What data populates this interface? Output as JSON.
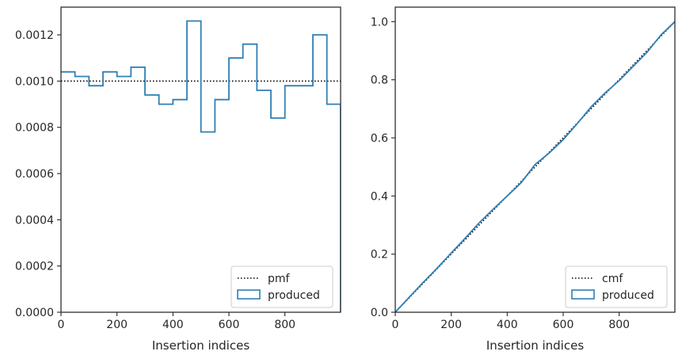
{
  "chart_data": [
    {
      "type": "histogram-step",
      "xlabel": "Insertion indices",
      "ylabel": "",
      "xlim": [
        0,
        999
      ],
      "ylim": [
        0,
        0.00132
      ],
      "x_ticks": [
        0,
        200,
        400,
        600,
        800
      ],
      "x_tick_labels": [
        "0",
        "200",
        "400",
        "600",
        "800"
      ],
      "y_ticks": [
        0,
        0.0002,
        0.0004,
        0.0006,
        0.0008,
        0.001,
        0.0012
      ],
      "y_tick_labels": [
        "0.0000",
        "0.0002",
        "0.0004",
        "0.0006",
        "0.0008",
        "0.0010",
        "0.0012"
      ],
      "legend": {
        "placement": "lower-right",
        "entries": [
          "pmf",
          "produced"
        ]
      },
      "series": [
        {
          "name": "pmf",
          "kind": "reference-line",
          "style": "dotted",
          "color": "#000000",
          "value": 0.001
        },
        {
          "name": "produced",
          "kind": "step",
          "color": "#2f7fb5",
          "bin_edges": [
            0,
            50,
            100,
            150,
            200,
            250,
            300,
            350,
            400,
            450,
            500,
            550,
            600,
            650,
            700,
            750,
            800,
            850,
            900,
            950,
            999
          ],
          "values": [
            0.00104,
            0.00102,
            0.00098,
            0.00104,
            0.00102,
            0.00106,
            0.00094,
            0.0009,
            0.00092,
            0.00126,
            0.00078,
            0.00092,
            0.0011,
            0.00116,
            0.00096,
            0.00084,
            0.00098,
            0.00098,
            0.0012,
            0.0009
          ]
        }
      ]
    },
    {
      "type": "cumulative-step",
      "xlabel": "Insertion indices",
      "ylabel": "",
      "xlim": [
        0,
        999
      ],
      "ylim": [
        0,
        1.05
      ],
      "x_ticks": [
        0,
        200,
        400,
        600,
        800
      ],
      "x_tick_labels": [
        "0",
        "200",
        "400",
        "600",
        "800"
      ],
      "y_ticks": [
        0,
        0.2,
        0.4,
        0.6,
        0.8,
        1.0
      ],
      "y_tick_labels": [
        "0.0",
        "0.2",
        "0.4",
        "0.6",
        "0.8",
        "1.0"
      ],
      "legend": {
        "placement": "lower-right",
        "entries": [
          "cmf",
          "produced"
        ]
      },
      "series": [
        {
          "name": "cmf",
          "kind": "reference-line",
          "style": "dotted",
          "color": "#000000",
          "from": [
            0,
            0
          ],
          "to": [
            999,
            1.0
          ]
        },
        {
          "name": "produced",
          "kind": "step",
          "color": "#2f7fb5",
          "x": [
            0,
            50,
            100,
            150,
            200,
            250,
            300,
            350,
            400,
            450,
            500,
            550,
            600,
            650,
            700,
            750,
            800,
            850,
            900,
            950,
            999
          ],
          "values": [
            0,
            0.052,
            0.103,
            0.152,
            0.204,
            0.255,
            0.308,
            0.355,
            0.4,
            0.446,
            0.509,
            0.548,
            0.594,
            0.649,
            0.707,
            0.755,
            0.797,
            0.846,
            0.895,
            0.955,
            1.0
          ]
        }
      ]
    }
  ]
}
